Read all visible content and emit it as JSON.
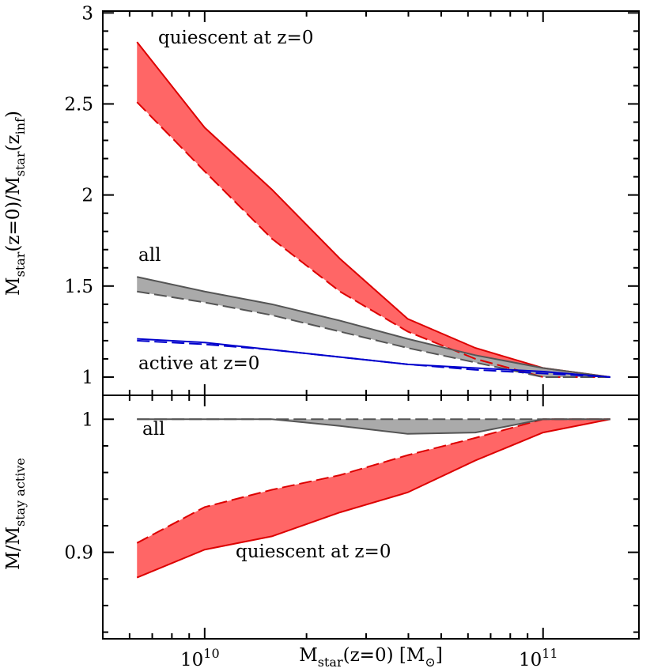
{
  "chart_data": [
    {
      "type": "line",
      "xscale": "log",
      "xticklabels": false,
      "xlim": [
        5000000000,
        192000000000
      ],
      "ylim": [
        0.9,
        3.01
      ],
      "xticks": [
        10000000000,
        100000000000
      ],
      "xminorticks": [
        6000000000,
        7000000000,
        8000000000,
        9000000000,
        20000000000,
        30000000000,
        40000000000,
        50000000000,
        60000000000,
        70000000000,
        80000000000,
        90000000000,
        200000000000
      ],
      "yticks": [
        1,
        1.5,
        2,
        2.5,
        3
      ],
      "yminorticks": [
        1.1,
        1.2,
        1.3,
        1.4,
        1.6,
        1.7,
        1.8,
        1.9,
        2.1,
        2.2,
        2.3,
        2.4,
        2.6,
        2.7,
        2.8,
        2.9
      ],
      "ylabel": [
        {
          "text": "M"
        },
        {
          "text": "star",
          "sub": true
        },
        {
          "text": "(z=0)/M"
        },
        {
          "text": "star",
          "sub": true
        },
        {
          "text": "(z"
        },
        {
          "text": "inf",
          "sub": true
        },
        {
          "text": ")"
        }
      ],
      "x": [
        6310000000,
        10000000000,
        15800000000,
        25100000000,
        39800000000,
        63100000000,
        100000000000,
        158000000000
      ],
      "series": [
        {
          "color": "#dd0000",
          "dash": false,
          "values": [
            2.84,
            2.37,
            2.03,
            1.65,
            1.32,
            1.16,
            1.05,
            1.0
          ]
        },
        {
          "color": "#dd0000",
          "dash": true,
          "values": [
            2.51,
            2.13,
            1.76,
            1.47,
            1.25,
            1.1,
            1.0,
            1.0
          ]
        },
        {
          "color": "#555555",
          "dash": false,
          "values": [
            1.55,
            1.47,
            1.4,
            1.31,
            1.21,
            1.12,
            1.05,
            1.0
          ]
        },
        {
          "color": "#555555",
          "dash": true,
          "values": [
            1.47,
            1.41,
            1.34,
            1.25,
            1.16,
            1.08,
            1.0,
            1.0
          ]
        },
        {
          "color": "#0000cc",
          "dash": false,
          "values": [
            1.21,
            1.19,
            1.15,
            1.11,
            1.07,
            1.05,
            1.03,
            1.0
          ]
        },
        {
          "color": "#0000cc",
          "dash": true,
          "values": [
            1.2,
            1.18,
            1.15,
            1.11,
            1.07,
            1.04,
            1.02,
            1.0
          ]
        }
      ],
      "fills": [
        {
          "between": [
            0,
            1
          ],
          "color": "#ff6666"
        },
        {
          "between": [
            2,
            3
          ],
          "color": "#aaaaaa"
        }
      ],
      "annotations": [
        "quiescent at z=0",
        "all",
        "active at z=0"
      ]
    },
    {
      "type": "line",
      "xscale": "log",
      "xlim": [
        5000000000,
        192000000000
      ],
      "ylim": [
        0.835,
        1.018
      ],
      "xticks": [
        {
          "value": 10000000000,
          "label": "10",
          "exp": "10"
        },
        {
          "value": 100000000000,
          "label": "10",
          "exp": "11"
        }
      ],
      "xminorticks": [
        6000000000,
        7000000000,
        8000000000,
        9000000000,
        20000000000,
        30000000000,
        40000000000,
        50000000000,
        60000000000,
        70000000000,
        80000000000,
        90000000000,
        200000000000
      ],
      "yticks": [
        0.9,
        1
      ],
      "yminorticks": [
        0.84,
        0.86,
        0.88,
        0.92,
        0.94,
        0.96,
        0.98
      ],
      "ylabel": [
        {
          "text": "M/M"
        },
        {
          "text": "stay active",
          "sub": true
        }
      ],
      "xlabel": [
        {
          "text": "M"
        },
        {
          "text": "star",
          "sub": true
        },
        {
          "text": "(z=0)  [M"
        },
        {
          "text": "⊙",
          "sub": true
        },
        {
          "text": "]"
        }
      ],
      "x": [
        6310000000,
        10000000000,
        15800000000,
        25100000000,
        39800000000,
        63100000000,
        100000000000,
        158000000000
      ],
      "series": [
        {
          "color": "#dd0000",
          "dash": false,
          "values": [
            0.881,
            0.902,
            0.912,
            0.93,
            0.945,
            0.969,
            0.99,
            1.0
          ]
        },
        {
          "color": "#dd0000",
          "dash": true,
          "values": [
            0.907,
            0.934,
            0.947,
            0.958,
            0.973,
            0.986,
            1.0,
            1.0
          ]
        },
        {
          "color": "#555555",
          "dash": false,
          "values": [
            1.0,
            1.0,
            1.0,
            0.995,
            0.989,
            0.99,
            1.0,
            1.0
          ]
        },
        {
          "color": "#555555",
          "dash": true,
          "values": [
            1.0,
            1.0,
            1.0,
            1.0,
            1.0,
            1.0,
            1.0,
            1.0
          ]
        }
      ],
      "fills": [
        {
          "between": [
            0,
            1
          ],
          "color": "#ff6666"
        },
        {
          "between": [
            2,
            3
          ],
          "color": "#aaaaaa"
        }
      ],
      "annotations": [
        "all",
        "quiescent at z=0"
      ]
    }
  ]
}
